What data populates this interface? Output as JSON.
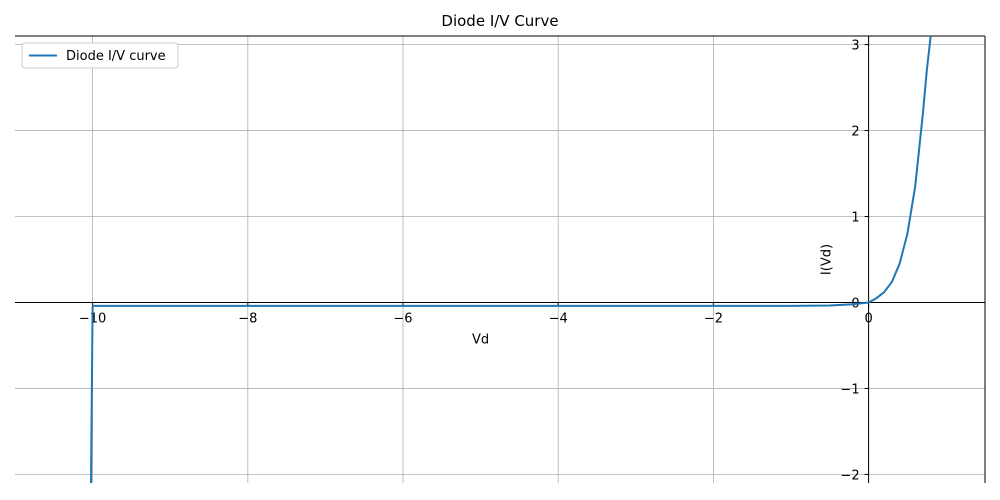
{
  "chart_data": {
    "type": "line",
    "title": "Diode I/V Curve",
    "xlabel": "Vd",
    "ylabel": "I(Vd)",
    "xlim": [
      -11,
      1.5
    ],
    "ylim": [
      -2.1,
      3.1
    ],
    "x_ticks": [
      -10,
      -8,
      -6,
      -4,
      -2,
      0
    ],
    "x_tick_labels": [
      "−10",
      "−8",
      "−6",
      "−4",
      "−2",
      "0"
    ],
    "y_ticks": [
      -2,
      -1,
      0,
      1,
      2,
      3
    ],
    "y_tick_labels": [
      "−2",
      "−1",
      "0",
      "1",
      "2",
      "3"
    ],
    "grid": true,
    "legend_position": "top-left",
    "series": [
      {
        "name": "Diode I/V curve",
        "color": "#1f77b4",
        "x": [
          -10.02,
          -10.0,
          -9.99,
          -8,
          -6,
          -4,
          -2,
          -1,
          -0.5,
          -0.2,
          0,
          0.1,
          0.2,
          0.3,
          0.4,
          0.5,
          0.6,
          0.7,
          0.75,
          0.8
        ],
        "y": [
          -2.1,
          -0.05,
          -0.04,
          -0.04,
          -0.04,
          -0.04,
          -0.04,
          -0.04,
          -0.035,
          -0.02,
          0.0,
          0.05,
          0.12,
          0.24,
          0.45,
          0.8,
          1.35,
          2.2,
          2.7,
          3.1
        ]
      }
    ]
  }
}
